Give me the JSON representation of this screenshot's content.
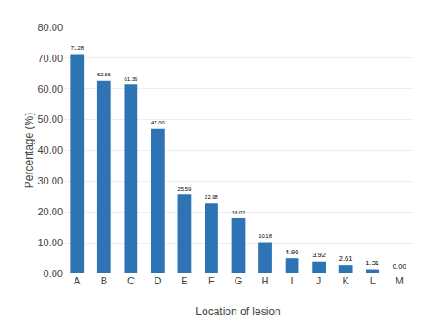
{
  "chart_data": {
    "type": "bar",
    "categories": [
      "A",
      "B",
      "C",
      "D",
      "E",
      "F",
      "G",
      "H",
      "I",
      "J",
      "K",
      "L",
      "M"
    ],
    "values": [
      71.28,
      62.66,
      61.36,
      47.0,
      25.59,
      22.98,
      18.02,
      10.18,
      4.96,
      3.92,
      2.61,
      1.31,
      0.0
    ],
    "value_labels": [
      "71.28",
      "62.66",
      "61.36",
      "47.00",
      "25.59",
      "22.98",
      "18.02",
      "10.18",
      "4.96",
      "3.92",
      "2.61",
      "1.31",
      "0.00"
    ],
    "data_labels": true,
    "color": "#2E74B5",
    "xlabel": "Location of lesion",
    "ylabel": "Percentage (%)",
    "ylim": [
      0,
      80
    ],
    "yticks": [
      {
        "value": 0,
        "label": "0.00"
      },
      {
        "value": 10,
        "label": "10.00"
      },
      {
        "value": 20,
        "label": "20.00"
      },
      {
        "value": 30,
        "label": "30.00"
      },
      {
        "value": 40,
        "label": "40.00"
      },
      {
        "value": 50,
        "label": "50.00"
      },
      {
        "value": 60,
        "label": "60.00"
      },
      {
        "value": 70,
        "label": "70.00"
      },
      {
        "value": 80,
        "label": "80.00"
      }
    ],
    "grid": true
  }
}
